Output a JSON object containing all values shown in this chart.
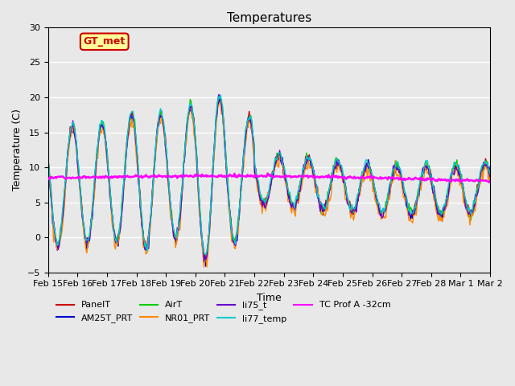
{
  "title": "Temperatures",
  "xlabel": "Time",
  "ylabel": "Temperature (C)",
  "ylim": [
    -5,
    30
  ],
  "background_color": "#e8e8e8",
  "plot_bg_color": "#e8e8e8",
  "series_colors": {
    "PanelT": "#cc0000",
    "AM25T_PRT": "#0000cc",
    "AirT": "#00cc00",
    "NR01_PRT": "#ff8800",
    "li75_t": "#6600cc",
    "li77_temp": "#00cccc",
    "TC_Prof_A": "#ff00ff"
  },
  "annotation_text": "GT_met",
  "annotation_color": "#cc0000",
  "annotation_bg": "#ffff99",
  "annotation_border": "#cc0000",
  "yticks": [
    -5,
    0,
    5,
    10,
    15,
    20,
    25,
    30
  ],
  "xtick_labels": [
    "Feb 15",
    "Feb 16",
    "Feb 17",
    "Feb 18",
    "Feb 19",
    "Feb 20",
    "Feb 21",
    "Feb 22",
    "Feb 23",
    "Feb 24",
    "Feb 25",
    "Feb 26",
    "Feb 27",
    "Feb 28",
    "Mar 1",
    "Mar 2"
  ],
  "n_points": 480
}
